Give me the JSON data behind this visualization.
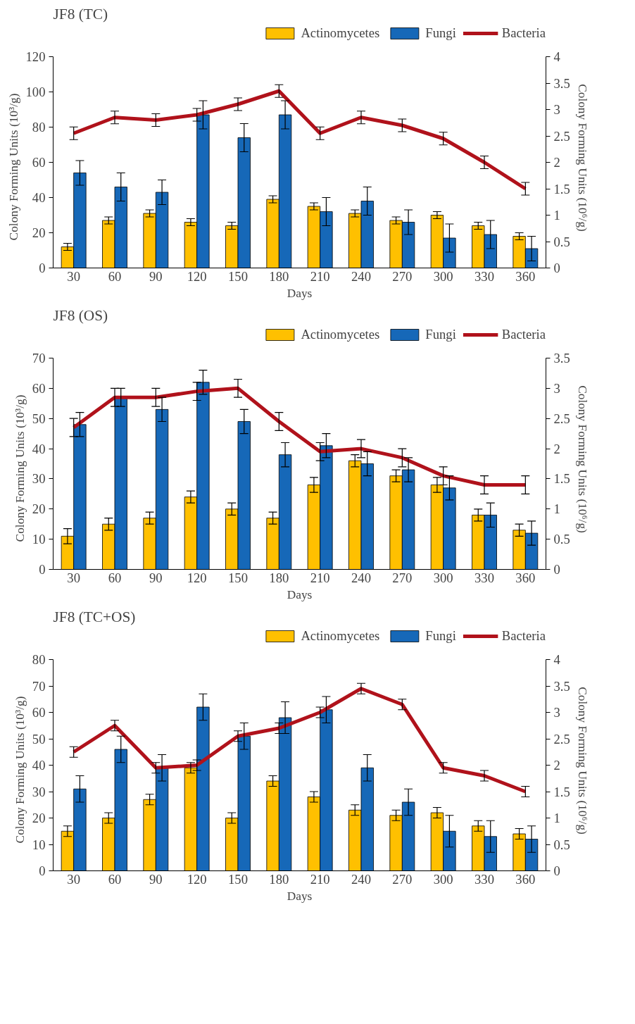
{
  "chart_data": [
    {
      "type": "bar",
      "title": "JF8 (TC)",
      "xlabel": "Days",
      "ylabel": "Colony  Forming  Units  (10³/g)",
      "y2label": "Colony  Forming  Units  (10⁶/g)",
      "categories": [
        "30",
        "60",
        "90",
        "120",
        "150",
        "180",
        "210",
        "240",
        "270",
        "300",
        "330",
        "360"
      ],
      "series": [
        {
          "name": "Actinomycetes",
          "color": "#ffc000",
          "values": [
            12,
            27,
            31,
            26,
            24,
            39,
            35,
            31,
            27,
            30,
            24,
            18
          ],
          "errors": [
            2,
            2,
            2,
            2,
            2,
            2,
            2,
            2,
            2,
            2,
            2,
            2
          ]
        },
        {
          "name": "Fungi",
          "color": "#1668b8",
          "values": [
            54,
            46,
            43,
            87,
            74,
            87,
            32,
            38,
            26,
            17,
            19,
            11
          ],
          "errors": [
            7,
            8,
            7,
            8,
            8,
            8,
            8,
            8,
            7,
            8,
            8,
            7
          ]
        },
        {
          "name": "Bacteria",
          "type": "line",
          "axis": "y2",
          "color": "#b0121b",
          "values": [
            2.55,
            2.85,
            2.8,
            2.9,
            3.1,
            3.35,
            2.55,
            2.85,
            2.7,
            2.45,
            2.0,
            1.5
          ],
          "errors": [
            0.12,
            0.12,
            0.12,
            0.12,
            0.12,
            0.12,
            0.12,
            0.12,
            0.12,
            0.12,
            0.12,
            0.12
          ]
        }
      ],
      "ylim": [
        0,
        120
      ],
      "yticks": [
        0,
        20,
        40,
        60,
        80,
        100,
        120
      ],
      "y2lim": [
        0,
        4
      ],
      "y2ticks": [
        0,
        0.5,
        1,
        1.5,
        2,
        2.5,
        3,
        3.5,
        4
      ],
      "legend": "top",
      "grid": false
    },
    {
      "type": "bar",
      "title": "JF8 (OS)",
      "xlabel": "Days",
      "ylabel": "Colony  Forming  Units  (10³/g)",
      "y2label": "Colony  Forming  Units  (10⁶/g)",
      "categories": [
        "30",
        "60",
        "90",
        "120",
        "150",
        "180",
        "210",
        "240",
        "270",
        "300",
        "330",
        "360"
      ],
      "series": [
        {
          "name": "Actinomycetes",
          "color": "#ffc000",
          "values": [
            11,
            15,
            17,
            24,
            20,
            17,
            28,
            36,
            31,
            28,
            18,
            13
          ],
          "errors": [
            2.5,
            2,
            2,
            2,
            2,
            2,
            2.5,
            2,
            2,
            2.5,
            2,
            2
          ]
        },
        {
          "name": "Fungi",
          "color": "#1668b8",
          "values": [
            48,
            57,
            53,
            62,
            49,
            38,
            41,
            35,
            33,
            27,
            18,
            12
          ],
          "errors": [
            4,
            3,
            4,
            4,
            4,
            4,
            4,
            4,
            4,
            4,
            4,
            4
          ]
        },
        {
          "name": "Bacteria",
          "type": "line",
          "axis": "y2",
          "color": "#b0121b",
          "values": [
            2.35,
            2.85,
            2.85,
            2.95,
            3.0,
            2.45,
            1.95,
            2.0,
            1.85,
            1.55,
            1.4,
            1.4
          ],
          "errors": [
            0.15,
            0.15,
            0.15,
            0.15,
            0.15,
            0.15,
            0.15,
            0.15,
            0.15,
            0.15,
            0.15,
            0.15
          ]
        }
      ],
      "ylim": [
        0,
        70
      ],
      "yticks": [
        0,
        10,
        20,
        30,
        40,
        50,
        60,
        70
      ],
      "y2lim": [
        0,
        3.5
      ],
      "y2ticks": [
        0,
        0.5,
        1,
        1.5,
        2,
        2.5,
        3,
        3.5
      ],
      "legend": "top",
      "grid": false
    },
    {
      "type": "bar",
      "title": "JF8 (TC+OS)",
      "xlabel": "Days",
      "ylabel": "Colony  Forming  Units  (10³/g)",
      "y2label": "Colony  Forming  Units  (10⁶/g)",
      "categories": [
        "30",
        "60",
        "90",
        "120",
        "150",
        "180",
        "210",
        "240",
        "270",
        "300",
        "330",
        "360"
      ],
      "series": [
        {
          "name": "Actinomycetes",
          "color": "#ffc000",
          "values": [
            15,
            20,
            27,
            39,
            20,
            34,
            28,
            23,
            21,
            22,
            17,
            14
          ],
          "errors": [
            2,
            2,
            2,
            2,
            2,
            2,
            2,
            2,
            2,
            2,
            2,
            2
          ]
        },
        {
          "name": "Fungi",
          "color": "#1668b8",
          "values": [
            31,
            46,
            39,
            62,
            51,
            58,
            61,
            39,
            26,
            15,
            13,
            12
          ],
          "errors": [
            5,
            5,
            5,
            5,
            5,
            6,
            5,
            5,
            5,
            6,
            6,
            5
          ]
        },
        {
          "name": "Bacteria",
          "type": "line",
          "axis": "y2",
          "color": "#b0121b",
          "values": [
            2.25,
            2.75,
            1.95,
            2.0,
            2.55,
            2.7,
            3.0,
            3.45,
            3.15,
            1.95,
            1.8,
            1.5
          ],
          "errors": [
            0.1,
            0.1,
            0.1,
            0.1,
            0.1,
            0.1,
            0.1,
            0.1,
            0.1,
            0.1,
            0.1,
            0.1
          ]
        }
      ],
      "ylim": [
        0,
        80
      ],
      "yticks": [
        0,
        10,
        20,
        30,
        40,
        50,
        60,
        70,
        80
      ],
      "y2lim": [
        0,
        4
      ],
      "y2ticks": [
        0,
        0.5,
        1,
        1.5,
        2,
        2.5,
        3,
        3.5,
        4
      ],
      "legend": "top",
      "grid": false
    }
  ]
}
